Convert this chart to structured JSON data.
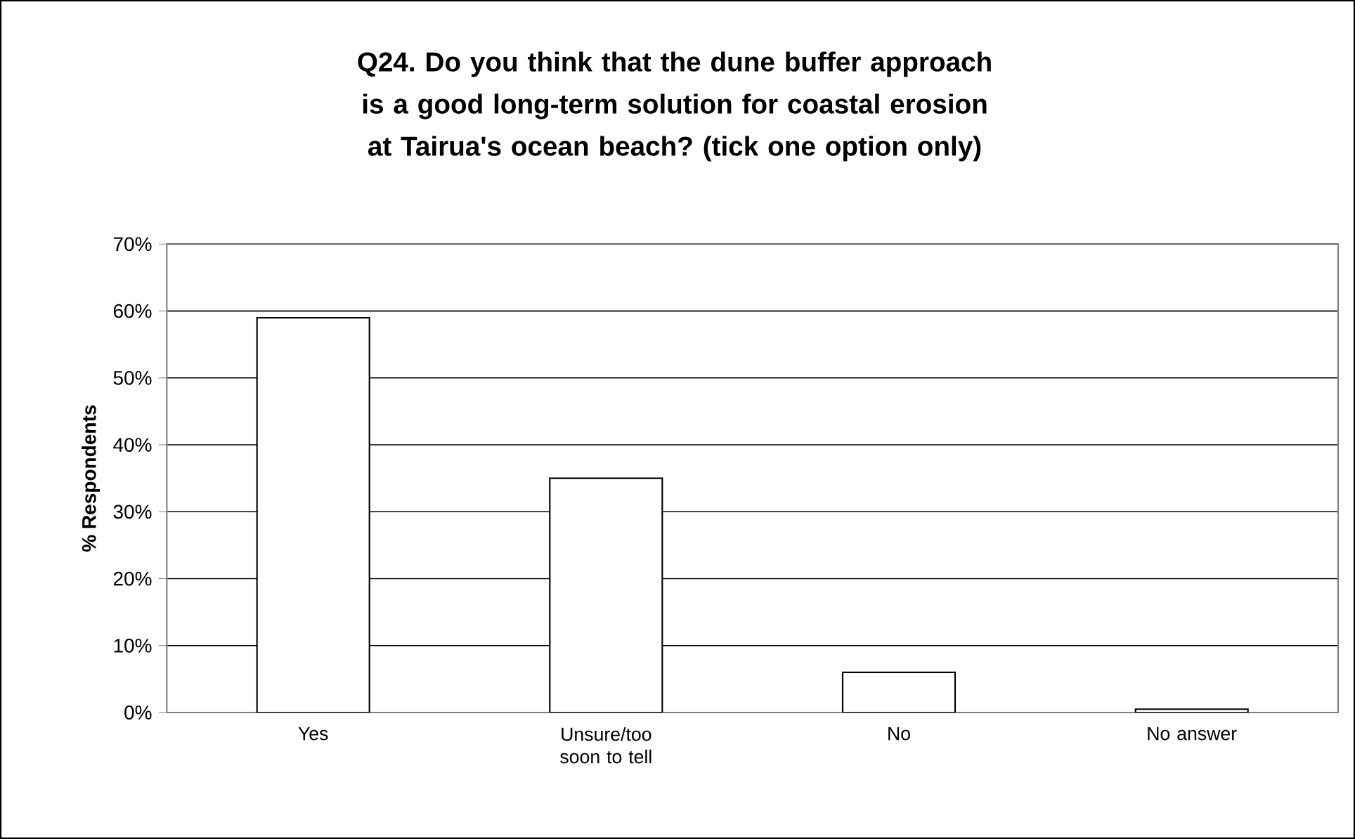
{
  "chart_data": {
    "type": "bar",
    "title": "Q24. Do you think that the dune buffer approach is a good long-term solution for coastal erosion at Tairua's ocean beach? (tick one option only)",
    "ylabel": "% Respondents",
    "categories": [
      "Yes",
      "Unsure/too soon to tell",
      "No",
      "No answer"
    ],
    "values": [
      59,
      35,
      6,
      0.5
    ],
    "color": "#ffffff",
    "ylim": [
      0,
      70
    ],
    "yticks": [
      {
        "value": 0,
        "label": "0%"
      },
      {
        "value": 10,
        "label": "10%"
      },
      {
        "value": 20,
        "label": "20%"
      },
      {
        "value": 30,
        "label": "30%"
      },
      {
        "value": 40,
        "label": "40%"
      },
      {
        "value": 50,
        "label": "50%"
      },
      {
        "value": 60,
        "label": "60%"
      },
      {
        "value": 70,
        "label": "70%"
      }
    ],
    "grid": "y"
  }
}
